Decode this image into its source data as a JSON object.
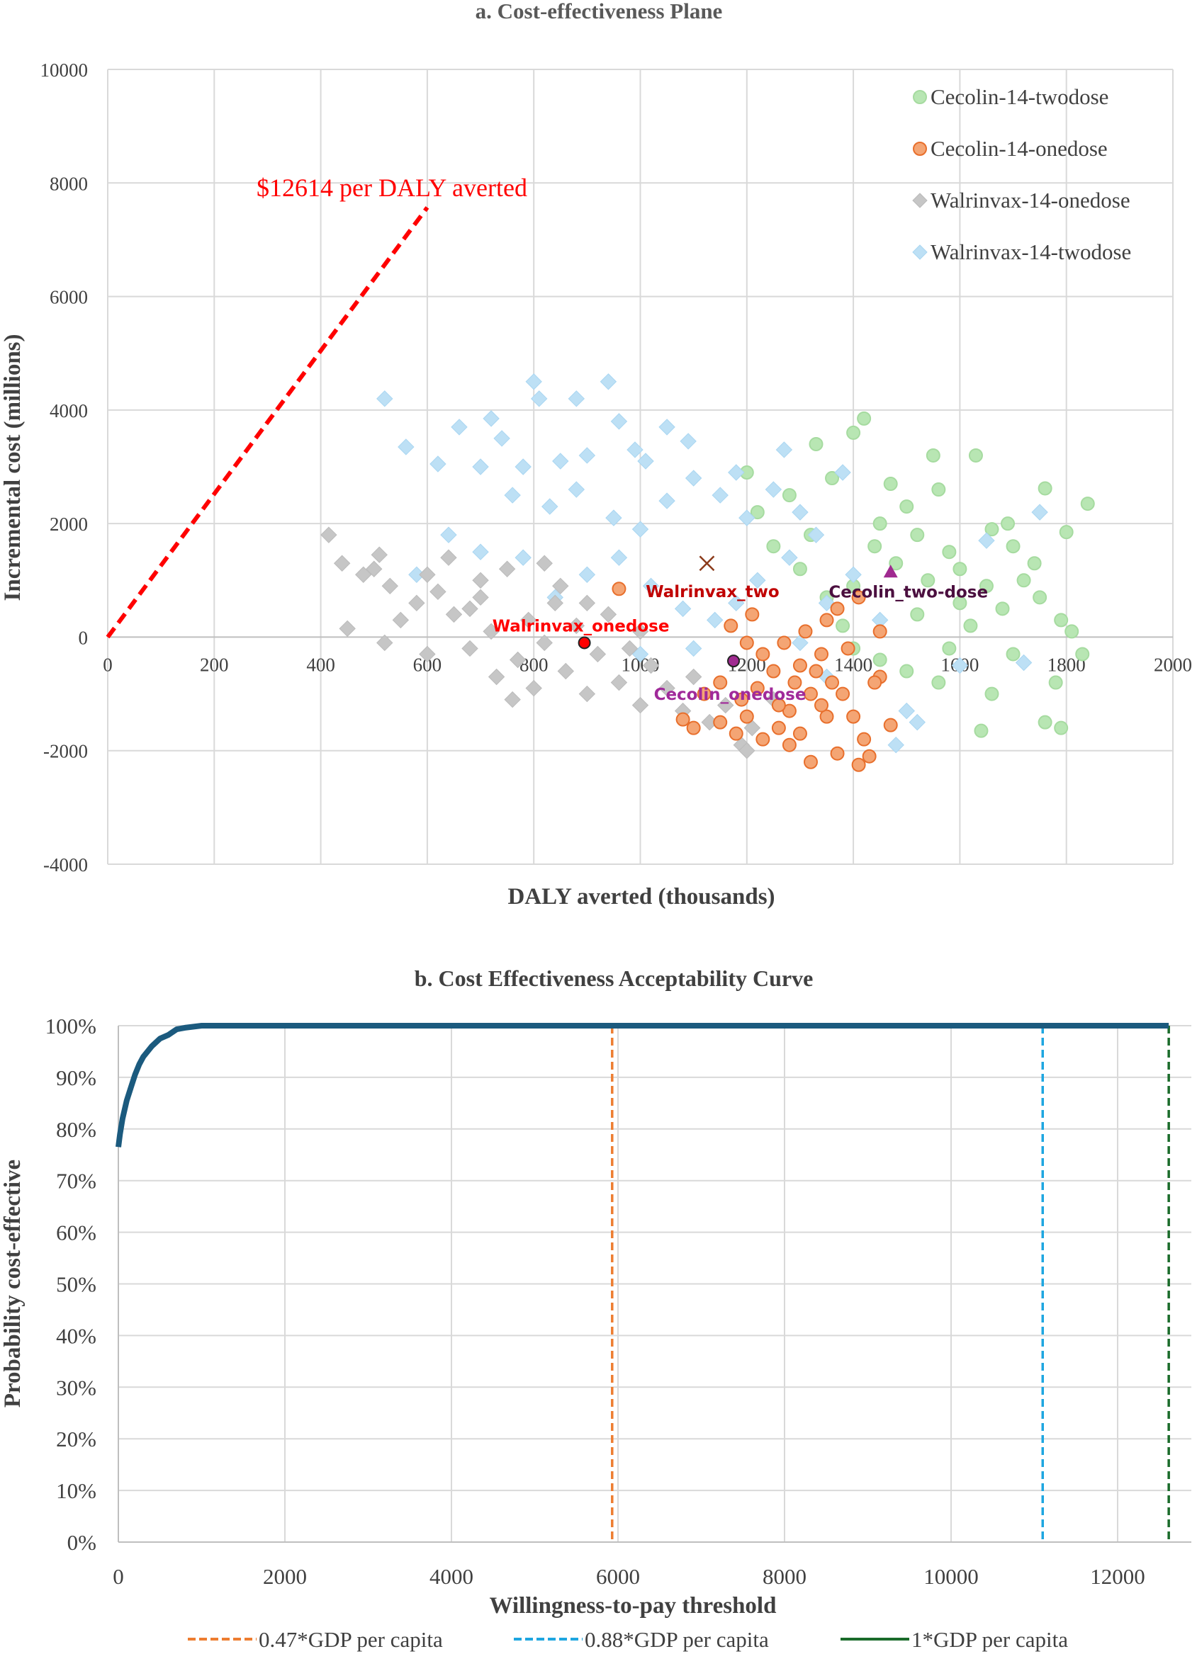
{
  "chart_data": [
    {
      "type": "scatter",
      "title": "a. Cost-effectiveness Plane",
      "xlabel": "DALY averted (thousands)",
      "ylabel": "Incremental cost (millions)",
      "xlim": [
        0,
        2000
      ],
      "ylim": [
        -4000,
        10000
      ],
      "xticks": [
        0,
        200,
        400,
        600,
        800,
        1000,
        1200,
        1400,
        1600,
        1800,
        2000
      ],
      "yticks": [
        -4000,
        -2000,
        0,
        2000,
        4000,
        6000,
        8000,
        10000
      ],
      "grid": true,
      "legend_placement": "top-right",
      "threshold_line": {
        "label": "$12614 per DALY averted",
        "slope_per_unit": 12.614,
        "x_range": [
          0,
          600
        ],
        "color": "#ff0000",
        "style": "dashed"
      },
      "series": [
        {
          "name": "Cecolin-14-twodose",
          "marker": "circle",
          "color": "#b8e6b3",
          "stroke": "#a6dba0",
          "points": [
            [
              1420,
              3850
            ],
            [
              1400,
              3600
            ],
            [
              1330,
              3400
            ],
            [
              1760,
              2620
            ],
            [
              1840,
              2350
            ],
            [
              1800,
              1850
            ],
            [
              1630,
              3200
            ],
            [
              1550,
              3200
            ],
            [
              1470,
              2700
            ],
            [
              1500,
              2300
            ],
            [
              1450,
              2000
            ],
            [
              1520,
              1800
            ],
            [
              1580,
              1500
            ],
            [
              1600,
              1200
            ],
            [
              1650,
              900
            ],
            [
              1700,
              1600
            ],
            [
              1720,
              1000
            ],
            [
              1680,
              500
            ],
            [
              1750,
              700
            ],
            [
              1790,
              300
            ],
            [
              1810,
              100
            ],
            [
              1830,
              -300
            ],
            [
              1780,
              -800
            ],
            [
              1760,
              -1500
            ],
            [
              1790,
              -1600
            ],
            [
              1640,
              -1650
            ],
            [
              1660,
              -1000
            ],
            [
              1560,
              -800
            ],
            [
              1500,
              -600
            ],
            [
              1450,
              -400
            ],
            [
              1400,
              -200
            ],
            [
              1380,
              200
            ],
            [
              1350,
              700
            ],
            [
              1300,
              1200
            ],
            [
              1250,
              1600
            ],
            [
              1220,
              2200
            ],
            [
              1200,
              2900
            ],
            [
              1280,
              2500
            ],
            [
              1360,
              2800
            ],
            [
              1480,
              1300
            ],
            [
              1540,
              1000
            ],
            [
              1600,
              600
            ],
            [
              1620,
              200
            ],
            [
              1700,
              -300
            ],
            [
              1560,
              2600
            ],
            [
              1440,
              1600
            ],
            [
              1660,
              1900
            ],
            [
              1520,
              400
            ],
            [
              1400,
              900
            ],
            [
              1320,
              1800
            ],
            [
              1580,
              -200
            ],
            [
              1740,
              1300
            ],
            [
              1690,
              2000
            ]
          ]
        },
        {
          "name": "Walrinvax-14-twodose",
          "marker": "diamond",
          "color": "#bde0f5",
          "stroke": "#a9d6f2",
          "points": [
            [
              520,
              4200
            ],
            [
              560,
              3350
            ],
            [
              620,
              3050
            ],
            [
              660,
              3700
            ],
            [
              700,
              3000
            ],
            [
              720,
              3850
            ],
            [
              740,
              3500
            ],
            [
              800,
              4500
            ],
            [
              810,
              4200
            ],
            [
              880,
              4200
            ],
            [
              940,
              4500
            ],
            [
              960,
              3800
            ],
            [
              990,
              3300
            ],
            [
              1050,
              3700
            ],
            [
              1090,
              3450
            ],
            [
              1010,
              3100
            ],
            [
              900,
              3200
            ],
            [
              850,
              3100
            ],
            [
              780,
              3000
            ],
            [
              760,
              2500
            ],
            [
              830,
              2300
            ],
            [
              880,
              2600
            ],
            [
              950,
              2100
            ],
            [
              1000,
              1900
            ],
            [
              1050,
              2400
            ],
            [
              1100,
              2800
            ],
            [
              1150,
              2500
            ],
            [
              1200,
              2100
            ],
            [
              1250,
              2600
            ],
            [
              1300,
              2200
            ],
            [
              1330,
              1800
            ],
            [
              1280,
              1400
            ],
            [
              1220,
              1000
            ],
            [
              1180,
              600
            ],
            [
              1140,
              300
            ],
            [
              1100,
              -200
            ],
            [
              1080,
              500
            ],
            [
              1020,
              900
            ],
            [
              960,
              1400
            ],
            [
              900,
              1100
            ],
            [
              840,
              700
            ],
            [
              780,
              1400
            ],
            [
              700,
              1500
            ],
            [
              640,
              1800
            ],
            [
              580,
              1100
            ],
            [
              1300,
              -100
            ],
            [
              1350,
              600
            ],
            [
              1400,
              1100
            ],
            [
              1450,
              300
            ],
            [
              1500,
              -1300
            ],
            [
              1520,
              -1500
            ],
            [
              1480,
              -1900
            ],
            [
              1600,
              -500
            ],
            [
              1720,
              -450
            ],
            [
              1750,
              2200
            ],
            [
              1650,
              1700
            ],
            [
              1380,
              2900
            ],
            [
              1270,
              3300
            ],
            [
              1180,
              2900
            ],
            [
              1350,
              -700
            ],
            [
              1000,
              -300
            ]
          ]
        },
        {
          "name": "Walrinvax-14-onedose",
          "marker": "diamond",
          "color": "#c6c6c6",
          "stroke": "#bbbbbb",
          "points": [
            [
              415,
              1800
            ],
            [
              450,
              150
            ],
            [
              440,
              1300
            ],
            [
              480,
              1100
            ],
            [
              500,
              1200
            ],
            [
              510,
              1450
            ],
            [
              530,
              900
            ],
            [
              550,
              300
            ],
            [
              520,
              -100
            ],
            [
              580,
              600
            ],
            [
              600,
              1100
            ],
            [
              620,
              800
            ],
            [
              640,
              1400
            ],
            [
              650,
              400
            ],
            [
              680,
              -200
            ],
            [
              700,
              700
            ],
            [
              720,
              100
            ],
            [
              730,
              -700
            ],
            [
              750,
              1200
            ],
            [
              770,
              -400
            ],
            [
              790,
              300
            ],
            [
              800,
              -900
            ],
            [
              820,
              -100
            ],
            [
              840,
              600
            ],
            [
              860,
              -600
            ],
            [
              880,
              200
            ],
            [
              900,
              -1000
            ],
            [
              920,
              -300
            ],
            [
              940,
              400
            ],
            [
              960,
              -800
            ],
            [
              980,
              -200
            ],
            [
              1000,
              -1200
            ],
            [
              1020,
              -500
            ],
            [
              1050,
              -900
            ],
            [
              1080,
              -1300
            ],
            [
              1100,
              -700
            ],
            [
              1130,
              -1500
            ],
            [
              1160,
              -1200
            ],
            [
              1190,
              -1900
            ],
            [
              1200,
              -2000
            ],
            [
              1210,
              -1600
            ],
            [
              1250,
              -1100
            ],
            [
              700,
              1000
            ],
            [
              850,
              900
            ],
            [
              600,
              -300
            ],
            [
              760,
              -1100
            ],
            [
              820,
              1300
            ],
            [
              1000,
              100
            ],
            [
              680,
              500
            ],
            [
              900,
              600
            ]
          ]
        },
        {
          "name": "Cecolin-14-onedose",
          "marker": "circle",
          "color": "#f4a574",
          "stroke": "#e86f2c",
          "points": [
            [
              960,
              850
            ],
            [
              1080,
              -1450
            ],
            [
              1100,
              -1600
            ],
            [
              1150,
              -1500
            ],
            [
              1180,
              -1700
            ],
            [
              1200,
              -1400
            ],
            [
              1230,
              -1800
            ],
            [
              1260,
              -1600
            ],
            [
              1280,
              -1300
            ],
            [
              1300,
              -1700
            ],
            [
              1320,
              -2200
            ],
            [
              1350,
              -1400
            ],
            [
              1380,
              -1000
            ],
            [
              1410,
              -2250
            ],
            [
              1420,
              -1800
            ],
            [
              1430,
              -2100
            ],
            [
              1470,
              -1550
            ],
            [
              1450,
              -700
            ],
            [
              1440,
              -800
            ],
            [
              1370,
              -2050
            ],
            [
              1400,
              -1400
            ],
            [
              1320,
              -1000
            ],
            [
              1300,
              -500
            ],
            [
              1340,
              -300
            ],
            [
              1310,
              100
            ],
            [
              1350,
              300
            ],
            [
              1370,
              500
            ],
            [
              1410,
              700
            ],
            [
              1450,
              100
            ],
            [
              1250,
              -600
            ],
            [
              1220,
              -900
            ],
            [
              1190,
              -1100
            ],
            [
              1260,
              -1200
            ],
            [
              1290,
              -800
            ],
            [
              1330,
              -600
            ],
            [
              1360,
              -800
            ],
            [
              1230,
              -300
            ],
            [
              1200,
              -100
            ],
            [
              1150,
              -800
            ],
            [
              1120,
              -1000
            ],
            [
              1170,
              200
            ],
            [
              1210,
              400
            ],
            [
              1270,
              -100
            ],
            [
              1340,
              -1200
            ],
            [
              1390,
              -200
            ],
            [
              1280,
              -1900
            ]
          ]
        }
      ],
      "legend_order": [
        "Cecolin-14-twodose",
        "Cecolin-14-onedose",
        "Walrinvax-14-onedose",
        "Walrinvax-14-twodose"
      ],
      "mean_points": [
        {
          "label": "Walrinvax_onedose",
          "x": 895,
          "y": -100,
          "marker": "circle",
          "color": "#ff0000",
          "label_color": "#ff0000"
        },
        {
          "label": "Walrinvax_two",
          "x": 1125,
          "y": 1300,
          "marker": "x",
          "color": "#8b3a1a",
          "label_color": "#c00000"
        },
        {
          "label": "Cecolin_two-dose",
          "x": 1470,
          "y": 1150,
          "marker": "triangle",
          "color": "#a02a90",
          "label_color": "#4b0f3f"
        },
        {
          "label": "Cecolin_onedose",
          "x": 1175,
          "y": -420,
          "marker": "circle",
          "color": "#a02a90",
          "label_color": "#a02a9a"
        }
      ]
    },
    {
      "type": "line",
      "title": "b. Cost Effectiveness Acceptability Curve",
      "xlabel": "Willingness-to-pay threshold",
      "ylabel": "Probability cost-effective",
      "xlim": [
        0,
        12900
      ],
      "ylim": [
        0,
        100
      ],
      "xticks": [
        0,
        2000,
        4000,
        6000,
        8000,
        10000,
        12000
      ],
      "yticks": [
        "0%",
        "10%",
        "20%",
        "30%",
        "40%",
        "50%",
        "60%",
        "70%",
        "80%",
        "90%",
        "100%"
      ],
      "grid": true,
      "legend_placement": "bottom",
      "curve": {
        "color": "#1b5a7e",
        "x": [
          0,
          20,
          50,
          100,
          150,
          200,
          250,
          300,
          400,
          500,
          600,
          700,
          800,
          1000,
          12614
        ],
        "y": [
          76.5,
          79,
          82,
          85.5,
          88,
          90.5,
          92.5,
          94,
          96,
          97.5,
          98.2,
          99.3,
          99.6,
          100,
          100
        ]
      },
      "thresholds": [
        {
          "name": "0.47*GDP per capita",
          "x": 5930,
          "color": "#ed7d31",
          "style": "dashed"
        },
        {
          "name": "0.88*GDP per capita",
          "x": 11100,
          "color": "#1ea6e0",
          "style": "dashed"
        },
        {
          "name": "1*GDP per capita",
          "x": 12614,
          "color": "#1a6b2a",
          "style": "dashed",
          "legend_style": "solid"
        }
      ]
    }
  ]
}
